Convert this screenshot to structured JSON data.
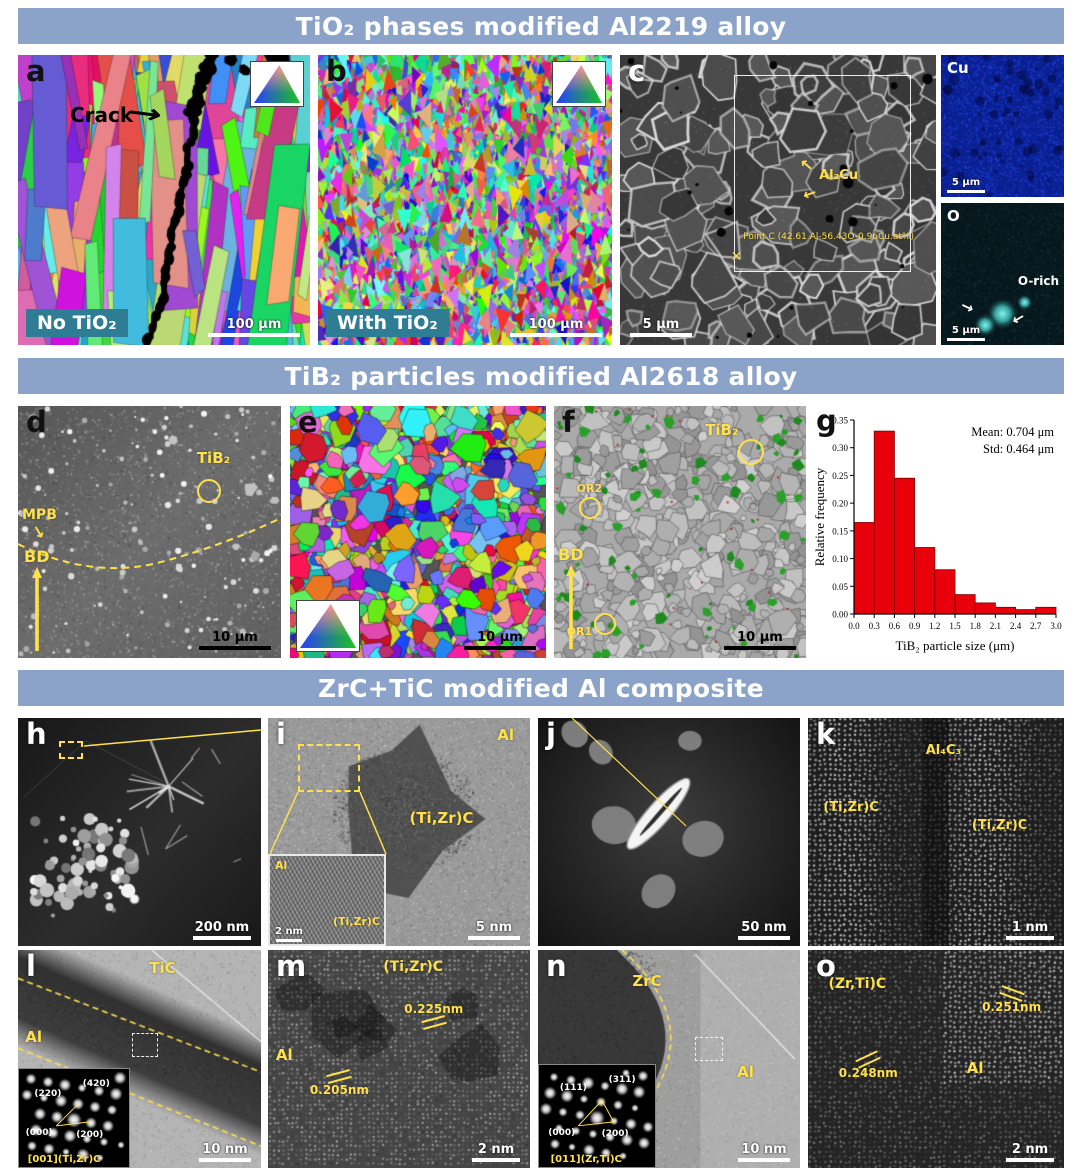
{
  "sections": [
    {
      "title": "TiO₂ phases modified Al2219 alloy"
    },
    {
      "title": "TiB₂ particles modified Al2618 alloy"
    },
    {
      "title": "ZrC+TiC modified Al composite"
    }
  ],
  "panels": {
    "a": {
      "letter": "a",
      "crack": "Crack",
      "tag": "No TiO₂",
      "scale": "100 μm"
    },
    "b": {
      "letter": "b",
      "tag": "With TiO₂",
      "scale": "100 μm"
    },
    "c": {
      "letter": "c",
      "phase": "Al₂Cu",
      "point": "Point C (42.61 Al-56.43O-0.96Cu.at%)",
      "marker": "✕",
      "scale": "5 μm"
    },
    "cu_map": {
      "label": "Cu",
      "scale": "5 μm"
    },
    "o_map": {
      "label": "O",
      "rich": "O-rich",
      "scale": "5 μm"
    },
    "d": {
      "letter": "d",
      "tib2": "TiB₂",
      "mpb": "MPB",
      "bd": "BD",
      "scale": "10 μm"
    },
    "e": {
      "letter": "e",
      "scale": "10 μm"
    },
    "f": {
      "letter": "f",
      "tib2": "TiB₂",
      "or2": "OR2",
      "or1": "OR1",
      "bd": "BD",
      "scale": "10 μm"
    },
    "g": {
      "letter": "g"
    },
    "h": {
      "letter": "h",
      "scale": "200 nm"
    },
    "i": {
      "letter": "i",
      "al": "Al",
      "tizrc": "(Ti,Zr)C",
      "inset_al": "Al",
      "inset_tizrc": "(Ti,Zr)C",
      "inset_scale": "2 nm",
      "scale": "5 nm"
    },
    "j": {
      "letter": "j",
      "scale": "50 nm"
    },
    "k": {
      "letter": "k",
      "al4c3": "Al₄C₃",
      "tizrc_left": "(Ti,Zr)C",
      "tizrc_right": "(Ti,Zr)C",
      "scale": "1 nm"
    },
    "l": {
      "letter": "l",
      "tic": "TiC",
      "al": "Al",
      "spots": [
        "(220)",
        "(420)",
        "(000)",
        "(200)"
      ],
      "zone": "[001](Ti,Zr)C",
      "scale": "10 nm"
    },
    "m": {
      "letter": "m",
      "tizrc": "(Ti,Zr)C",
      "al": "Al",
      "d1": "0.225nm",
      "d2": "0.205nm",
      "scale": "2 nm"
    },
    "n": {
      "letter": "n",
      "zrc": "ZrC",
      "al": "Al",
      "spots": [
        "(111)",
        "(311)",
        "(000)",
        "(200)"
      ],
      "zone": "[011](Zr,Ti)C",
      "scale": "10 nm"
    },
    "o": {
      "letter": "o",
      "zrtic": "(Zr,Ti)C",
      "al": "Al",
      "d1": "0.251nm",
      "d2": "0.248nm",
      "scale": "2 nm"
    }
  },
  "chart_data": {
    "type": "bar",
    "title": "",
    "xlabel": "TiB₂ particle size (μm)",
    "ylabel": "Relative frequency",
    "annotation": [
      "Mean: 0.704 μm",
      "Std: 0.464 μm"
    ],
    "bin_width": 0.3,
    "bin_centers": [
      0.15,
      0.45,
      0.75,
      1.05,
      1.35,
      1.65,
      1.95,
      2.25,
      2.55,
      2.85
    ],
    "values": [
      0.165,
      0.33,
      0.245,
      0.12,
      0.08,
      0.035,
      0.02,
      0.012,
      0.008,
      0.012
    ],
    "xticks": [
      0.0,
      0.3,
      0.6,
      0.9,
      1.2,
      1.5,
      1.8,
      2.1,
      2.4,
      2.7,
      3.0
    ],
    "yticks": [
      0.0,
      0.05,
      0.1,
      0.15,
      0.2,
      0.25,
      0.3,
      0.35
    ],
    "xlim": [
      0,
      3.0
    ],
    "ylim": [
      0,
      0.35
    ],
    "grid": false,
    "legend_position": "none",
    "bar_color": "#e8000b",
    "bar_edge": "#7a0000"
  },
  "colors": {
    "header_bg": "#8ba3c9",
    "annotation_yellow": "#ffe14d",
    "tag_bg": "#2f7d95",
    "bar_red": "#e8000b"
  }
}
